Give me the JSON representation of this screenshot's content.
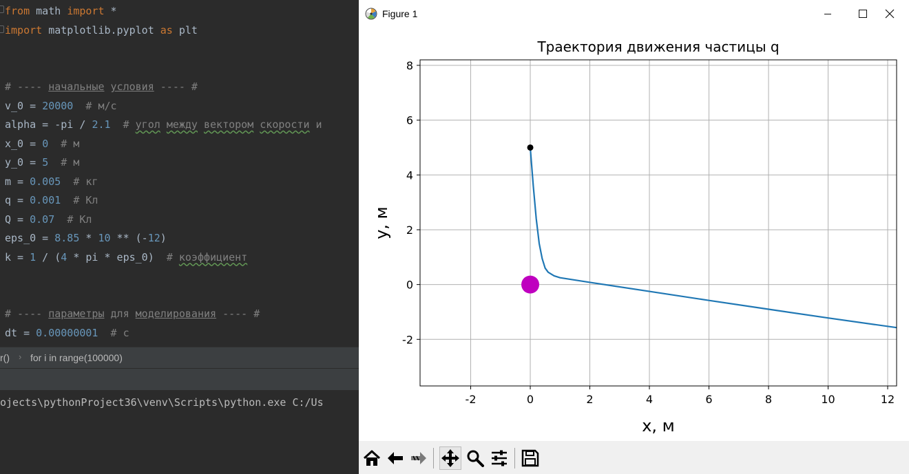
{
  "editor": {
    "lines": [
      [
        {
          "t": "from",
          "c": "kw"
        },
        {
          "t": " math "
        },
        {
          "t": "import",
          "c": "kw"
        },
        {
          "t": " *"
        }
      ],
      [
        {
          "t": "import",
          "c": "kw"
        },
        {
          "t": " matplotlib.pyplot "
        },
        {
          "t": "as",
          "c": "kw"
        },
        {
          "t": " plt"
        }
      ],
      [],
      [],
      [
        {
          "t": "# ---- ",
          "c": "cm"
        },
        {
          "t": "начальные",
          "c": "cm u"
        },
        {
          "t": " ",
          "c": "cm"
        },
        {
          "t": "условия",
          "c": "cm u"
        },
        {
          "t": " ---- #",
          "c": "cm"
        }
      ],
      [
        {
          "t": "v_0 = "
        },
        {
          "t": "20000",
          "c": "num"
        },
        {
          "t": "  "
        },
        {
          "t": "# м/с",
          "c": "cm"
        }
      ],
      [
        {
          "t": "alpha = -pi / "
        },
        {
          "t": "2.1",
          "c": "num"
        },
        {
          "t": "  "
        },
        {
          "t": "# ",
          "c": "cm"
        },
        {
          "t": "угол",
          "c": "cm sq"
        },
        {
          "t": " ",
          "c": "cm"
        },
        {
          "t": "между",
          "c": "cm sq"
        },
        {
          "t": " ",
          "c": "cm"
        },
        {
          "t": "вектором",
          "c": "cm sq"
        },
        {
          "t": " ",
          "c": "cm"
        },
        {
          "t": "скорости",
          "c": "cm sq"
        },
        {
          "t": " и",
          "c": "cm"
        }
      ],
      [
        {
          "t": "x_0 = "
        },
        {
          "t": "0",
          "c": "num"
        },
        {
          "t": "  "
        },
        {
          "t": "# м",
          "c": "cm"
        }
      ],
      [
        {
          "t": "y_0 = "
        },
        {
          "t": "5",
          "c": "num"
        },
        {
          "t": "  "
        },
        {
          "t": "# м",
          "c": "cm"
        }
      ],
      [
        {
          "t": "m = "
        },
        {
          "t": "0.005",
          "c": "num"
        },
        {
          "t": "  "
        },
        {
          "t": "# кг",
          "c": "cm"
        }
      ],
      [
        {
          "t": "q = "
        },
        {
          "t": "0.001",
          "c": "num"
        },
        {
          "t": "  "
        },
        {
          "t": "# Кл",
          "c": "cm"
        }
      ],
      [
        {
          "t": "Q = "
        },
        {
          "t": "0.07",
          "c": "num"
        },
        {
          "t": "  "
        },
        {
          "t": "# Кл",
          "c": "cm"
        }
      ],
      [
        {
          "t": "eps_0 = "
        },
        {
          "t": "8.85",
          "c": "num"
        },
        {
          "t": " * "
        },
        {
          "t": "10",
          "c": "num"
        },
        {
          "t": " ** (-"
        },
        {
          "t": "12",
          "c": "num"
        },
        {
          "t": ")"
        }
      ],
      [
        {
          "t": "k = "
        },
        {
          "t": "1",
          "c": "num"
        },
        {
          "t": " / ("
        },
        {
          "t": "4",
          "c": "num"
        },
        {
          "t": " * pi * eps_0)  "
        },
        {
          "t": "# ",
          "c": "cm"
        },
        {
          "t": "коэффициент",
          "c": "cm sq"
        }
      ],
      [],
      [],
      [
        {
          "t": "# ---- ",
          "c": "cm"
        },
        {
          "t": "параметры",
          "c": "cm u"
        },
        {
          "t": " для ",
          "c": "cm"
        },
        {
          "t": "моделирования",
          "c": "cm u"
        },
        {
          "t": " ---- #",
          "c": "cm"
        }
      ],
      [
        {
          "t": "dt = "
        },
        {
          "t": "0.00000001",
          "c": "num"
        },
        {
          "t": "  "
        },
        {
          "t": "# с",
          "c": "cm"
        }
      ]
    ]
  },
  "breadcrumb": {
    "function": "r()",
    "loop": "for i in range(100000)"
  },
  "console": {
    "command": "ojects\\pythonProject36\\venv\\Scripts\\python.exe C:/Us"
  },
  "window": {
    "title": "Figure 1"
  },
  "chart_data": {
    "type": "line",
    "title": "Траектория движения частицы q",
    "xlabel": "x, м",
    "ylabel": "y, м",
    "xlim": [
      -3.7,
      12.3
    ],
    "ylim": [
      -3.7,
      8.2
    ],
    "xticks": [
      -2,
      0,
      2,
      4,
      6,
      8,
      10,
      12
    ],
    "yticks": [
      -2,
      0,
      2,
      4,
      6,
      8
    ],
    "grid": true,
    "series": [
      {
        "color": "#1f77b4",
        "x": [
          0.0,
          0.1,
          0.2,
          0.3,
          0.4,
          0.5,
          0.6,
          0.8,
          1.0,
          2.0,
          4.0,
          6.0,
          8.0,
          10.0,
          12.3
        ],
        "y": [
          5.0,
          3.6,
          2.4,
          1.5,
          0.95,
          0.6,
          0.45,
          0.32,
          0.25,
          0.08,
          -0.25,
          -0.58,
          -0.9,
          -1.22,
          -1.57
        ]
      }
    ],
    "markers": [
      {
        "name": "start point",
        "x": 0,
        "y": 5,
        "color": "#000000"
      },
      {
        "name": "charge Q",
        "x": 0,
        "y": 0,
        "color": "#bf00bf"
      }
    ]
  },
  "toolbar": {
    "tools": [
      {
        "name": "home",
        "icon": "home-icon"
      },
      {
        "name": "back",
        "icon": "back-arrow-icon"
      },
      {
        "name": "forward",
        "icon": "forward-arrow-icon"
      },
      {
        "name": "pan",
        "icon": "pan-icon",
        "active": true
      },
      {
        "name": "zoom",
        "icon": "zoom-icon"
      },
      {
        "name": "subplots",
        "icon": "sliders-icon"
      },
      {
        "name": "save",
        "icon": "save-icon"
      }
    ]
  }
}
